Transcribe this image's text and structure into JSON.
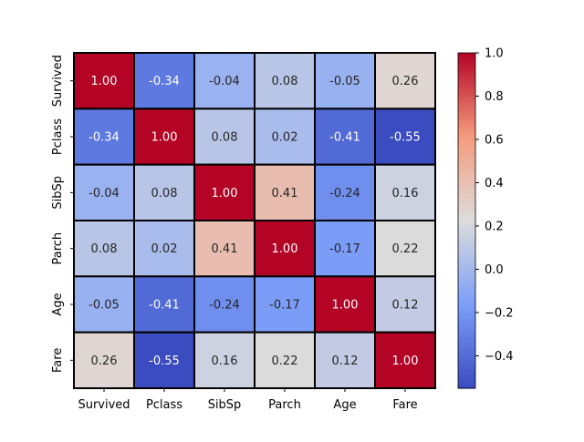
{
  "chart_data": {
    "type": "heatmap",
    "title": "",
    "xlabel": "",
    "ylabel": "",
    "x_categories": [
      "Survived",
      "Pclass",
      "SibSp",
      "Parch",
      "Age",
      "Fare"
    ],
    "y_categories": [
      "Survived",
      "Pclass",
      "SibSp",
      "Parch",
      "Age",
      "Fare"
    ],
    "values": [
      [
        1.0,
        -0.34,
        -0.04,
        0.08,
        -0.05,
        0.26
      ],
      [
        -0.34,
        1.0,
        0.08,
        0.02,
        -0.41,
        -0.55
      ],
      [
        -0.04,
        0.08,
        1.0,
        0.41,
        -0.24,
        0.16
      ],
      [
        0.08,
        0.02,
        0.41,
        1.0,
        -0.17,
        0.22
      ],
      [
        -0.05,
        -0.41,
        -0.24,
        -0.17,
        1.0,
        0.12
      ],
      [
        0.26,
        -0.55,
        0.16,
        0.22,
        0.12,
        1.0
      ]
    ],
    "value_format": "0.00",
    "colormap": "coolwarm",
    "vmin": -0.55,
    "vmax": 1.0,
    "colors": {
      "low": "#3b4cc0",
      "mid": "#dddcdc",
      "high": "#b40426"
    },
    "cell_border_color": "#000000",
    "colorbar": {
      "ticks": [
        1.0,
        0.8,
        0.6,
        0.4,
        0.2,
        0.0,
        -0.2,
        -0.4
      ],
      "tick_labels": [
        "1.0",
        "0.8",
        "0.6",
        "0.4",
        "0.2",
        "0.0",
        "−0.2",
        "−0.4"
      ]
    }
  }
}
